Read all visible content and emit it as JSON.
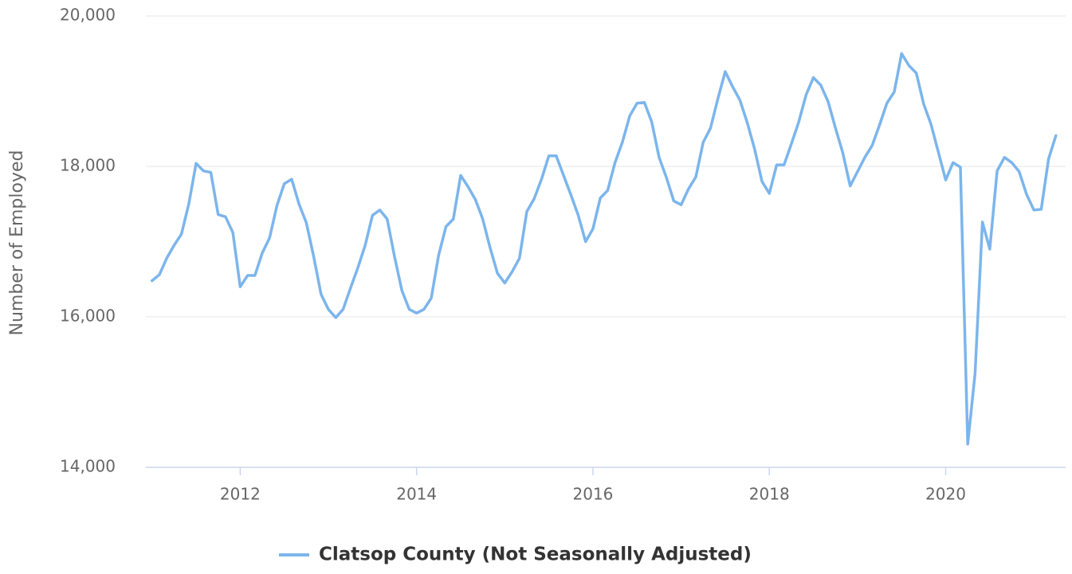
{
  "chart_data": {
    "type": "line",
    "y_label": "Number of Employed",
    "x": [
      2011,
      2011.0833,
      2011.1667,
      2011.25,
      2011.3333,
      2011.4167,
      2011.5,
      2011.5833,
      2011.6667,
      2011.75,
      2011.8333,
      2011.9167,
      2012,
      2012.0833,
      2012.1667,
      2012.25,
      2012.3333,
      2012.4167,
      2012.5,
      2012.5833,
      2012.6667,
      2012.75,
      2012.8333,
      2012.9167,
      2013,
      2013.0833,
      2013.1667,
      2013.25,
      2013.3333,
      2013.4167,
      2013.5,
      2013.5833,
      2013.6667,
      2013.75,
      2013.8333,
      2013.9167,
      2014,
      2014.0833,
      2014.1667,
      2014.25,
      2014.3333,
      2014.4167,
      2014.5,
      2014.5833,
      2014.6667,
      2014.75,
      2014.8333,
      2014.9167,
      2015,
      2015.0833,
      2015.1667,
      2015.25,
      2015.3333,
      2015.4167,
      2015.5,
      2015.5833,
      2015.6667,
      2015.75,
      2015.8333,
      2015.9167,
      2016,
      2016.0833,
      2016.1667,
      2016.25,
      2016.3333,
      2016.4167,
      2016.5,
      2016.5833,
      2016.6667,
      2016.75,
      2016.8333,
      2016.9167,
      2017,
      2017.0833,
      2017.1667,
      2017.25,
      2017.3333,
      2017.4167,
      2017.5,
      2017.5833,
      2017.6667,
      2017.75,
      2017.8333,
      2017.9167,
      2018,
      2018.0833,
      2018.1667,
      2018.25,
      2018.3333,
      2018.4167,
      2018.5,
      2018.5833,
      2018.6667,
      2018.75,
      2018.8333,
      2018.9167,
      2019,
      2019.0833,
      2019.1667,
      2019.25,
      2019.3333,
      2019.4167,
      2019.5,
      2019.5833,
      2019.6667,
      2019.75,
      2019.8333,
      2019.9167,
      2020,
      2020.0833,
      2020.1667,
      2020.25,
      2020.3333,
      2020.4167,
      2020.5,
      2020.5833,
      2020.6667,
      2020.75,
      2020.8333,
      2020.9167,
      2021,
      2021.0833,
      2021.1667,
      2021.25
    ],
    "series": [
      {
        "name": "Clatsop County (Not Seasonally Adjusted)",
        "color": "#7cb5ec",
        "values": [
          16480,
          16560,
          16780,
          16950,
          17100,
          17500,
          18040,
          17940,
          17920,
          17360,
          17330,
          17120,
          16400,
          16550,
          16550,
          16850,
          17050,
          17480,
          17770,
          17830,
          17500,
          17250,
          16800,
          16300,
          16100,
          15990,
          16100,
          16380,
          16650,
          16950,
          17350,
          17420,
          17300,
          16800,
          16350,
          16100,
          16050,
          16100,
          16250,
          16820,
          17200,
          17300,
          17880,
          17730,
          17560,
          17300,
          16920,
          16580,
          16450,
          16600,
          16780,
          17400,
          17570,
          17830,
          18140,
          18140,
          17880,
          17620,
          17350,
          17000,
          17170,
          17580,
          17680,
          18050,
          18320,
          18670,
          18840,
          18850,
          18590,
          18120,
          17850,
          17540,
          17490,
          17700,
          17860,
          18320,
          18510,
          18900,
          19260,
          19060,
          18880,
          18580,
          18230,
          17800,
          17640,
          18020,
          18020,
          18300,
          18590,
          18950,
          19180,
          19080,
          18860,
          18510,
          18180,
          17740,
          17930,
          18120,
          18280,
          18550,
          18840,
          18990,
          19500,
          19340,
          19240,
          18830,
          18560,
          18190,
          17820,
          18050,
          17990,
          14310,
          15250,
          17260,
          16900,
          17940,
          18120,
          18050,
          17930,
          17630,
          17420,
          17430,
          18100,
          18410
        ]
      }
    ],
    "xlim": [
      2010.93,
      2021.36
    ],
    "xticks": [
      2012,
      2014,
      2016,
      2018,
      2020
    ],
    "ylim": [
      14000,
      20000
    ],
    "yticks": [
      {
        "value": 14000,
        "label": "14,000"
      },
      {
        "value": 16000,
        "label": "16,000"
      },
      {
        "value": 18000,
        "label": "18,000"
      },
      {
        "value": 20000,
        "label": "20,000"
      }
    ],
    "grid": true
  }
}
